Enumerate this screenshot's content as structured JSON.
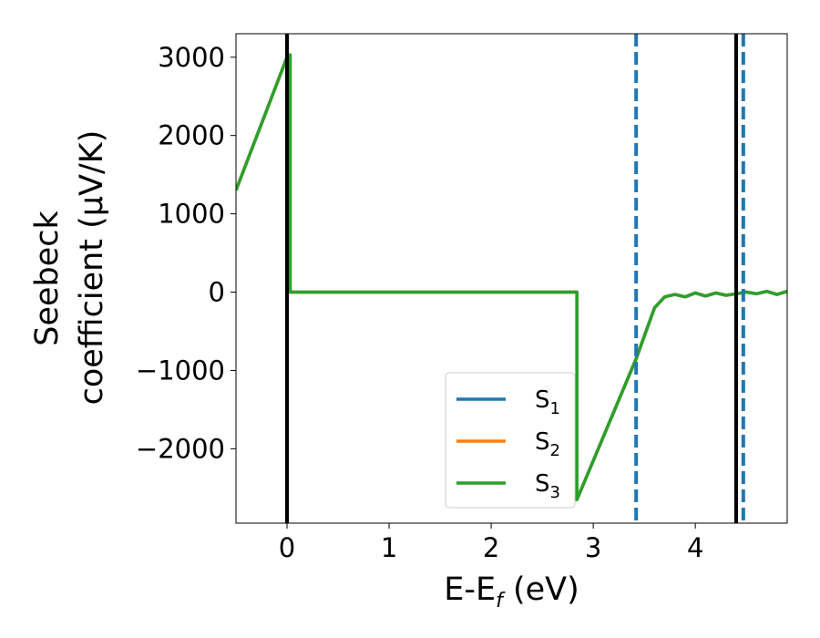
{
  "chart_data": {
    "type": "line",
    "xlabel": {
      "main": "E-E",
      "sub": "f",
      "rest": " (eV)"
    },
    "ylabel": {
      "line1": "Seebeck",
      "line2": "coefficient  (μV/K)"
    },
    "xlim": [
      -0.5,
      4.9
    ],
    "ylim": [
      -2950,
      3300
    ],
    "x_ticks": [
      0,
      1,
      2,
      3,
      4
    ],
    "y_ticks": [
      -2000,
      -1000,
      0,
      1000,
      2000,
      3000
    ],
    "x_tick_labels": [
      "0",
      "1",
      "2",
      "3",
      "4"
    ],
    "y_tick_labels": [
      "−2000",
      "−1000",
      "0",
      "1000",
      "2000",
      "3000"
    ],
    "grid": false,
    "legend_position": "lower-center",
    "vlines": [
      {
        "x": 0.0,
        "style": "solid",
        "color": "#000000"
      },
      {
        "x": 4.4,
        "style": "solid",
        "color": "#000000"
      },
      {
        "x": 3.42,
        "style": "dashed",
        "color": "#1f77b4"
      },
      {
        "x": 4.47,
        "style": "dashed",
        "color": "#1f77b4"
      }
    ],
    "series": [
      {
        "name": "S",
        "sub": "1",
        "color": "#1f77b4",
        "x": [
          -0.5,
          0.0,
          0.03,
          0.03,
          2.84,
          2.84,
          3.42,
          3.6,
          3.7,
          3.8,
          3.9,
          4.0,
          4.1,
          4.2,
          4.3,
          4.4,
          4.5,
          4.6,
          4.7,
          4.8,
          4.9
        ],
        "y": [
          1300,
          3000,
          3030,
          0,
          0,
          -2650,
          -850,
          -200,
          -60,
          -30,
          -60,
          -10,
          -50,
          -10,
          -40,
          -20,
          0,
          -20,
          10,
          -30,
          10
        ]
      },
      {
        "name": "S",
        "sub": "2",
        "color": "#ff7f0e",
        "x": [
          -0.5,
          0.0,
          0.03,
          0.03,
          2.84,
          2.84,
          3.42,
          3.6,
          3.7,
          3.8,
          3.9,
          4.0,
          4.1,
          4.2,
          4.3,
          4.4,
          4.5,
          4.6,
          4.7,
          4.8,
          4.9
        ],
        "y": [
          1300,
          3000,
          3030,
          0,
          0,
          -2650,
          -850,
          -200,
          -60,
          -30,
          -60,
          -10,
          -50,
          -10,
          -40,
          -20,
          0,
          -20,
          10,
          -30,
          10
        ]
      },
      {
        "name": "S",
        "sub": "3",
        "color": "#2ca02c",
        "x": [
          -0.5,
          0.0,
          0.03,
          0.03,
          2.84,
          2.84,
          3.42,
          3.6,
          3.7,
          3.8,
          3.9,
          4.0,
          4.1,
          4.2,
          4.3,
          4.4,
          4.5,
          4.6,
          4.7,
          4.8,
          4.9
        ],
        "y": [
          1300,
          3000,
          3030,
          0,
          0,
          -2650,
          -850,
          -200,
          -60,
          -30,
          -60,
          -10,
          -50,
          -10,
          -40,
          -20,
          0,
          -20,
          10,
          -30,
          10
        ]
      }
    ]
  }
}
